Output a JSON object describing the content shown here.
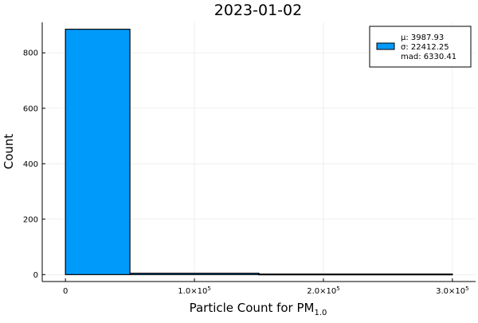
{
  "chart_data": {
    "type": "bar",
    "title": "2023-01-02",
    "xlabel": "Particle Count for PM",
    "xlabel_sub": "1.0",
    "ylabel": "Count",
    "xlim": [
      -18000,
      318000
    ],
    "ylim": [
      -25,
      910
    ],
    "grid": true,
    "legend_position": "top-right",
    "x_ticks": [
      {
        "value": 0,
        "mantissa": "0",
        "exp": ""
      },
      {
        "value": 100000,
        "mantissa": "1.0×10",
        "exp": "5"
      },
      {
        "value": 200000,
        "mantissa": "2.0×10",
        "exp": "5"
      },
      {
        "value": 300000,
        "mantissa": "3.0×10",
        "exp": "5"
      }
    ],
    "y_ticks": [
      0,
      200,
      400,
      600,
      800
    ],
    "bins": [
      {
        "x0": 0,
        "x1": 50000,
        "count": 885
      },
      {
        "x0": 50000,
        "x1": 150000,
        "count": 5
      },
      {
        "x0": 150000,
        "x1": 300000,
        "count": 2
      }
    ],
    "series": [
      {
        "color": "#009AFA",
        "legend_lines": [
          "μ: 3987.93",
          "σ: 22412.25",
          "mad: 6330.41"
        ]
      }
    ]
  }
}
